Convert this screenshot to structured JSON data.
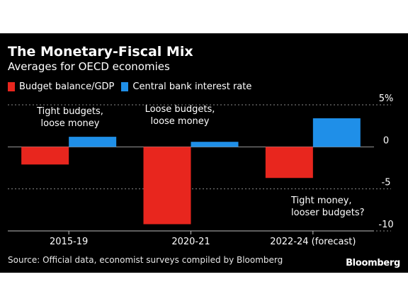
{
  "title": "The Monetary-Fiscal Mix",
  "subtitle": "Averages for OECD economies",
  "source": "Source: Official data, economist surveys compiled by Bloomberg",
  "brand": "Bloomberg",
  "colors": {
    "background": "#000000",
    "budget": "#e8261e",
    "rate": "#1f8fe8",
    "grid": "#8c8c8c"
  },
  "chart_data": {
    "type": "bar",
    "title": "The Monetary-Fiscal Mix",
    "subtitle": "Averages for OECD economies",
    "categories": [
      "2015-19",
      "2020-21",
      "2022-24 (forecast)"
    ],
    "series": [
      {
        "name": "Budget balance/GDP",
        "values": [
          -2.1,
          -9.2,
          -3.7
        ]
      },
      {
        "name": "Central bank interest rate",
        "values": [
          1.2,
          0.6,
          3.4
        ]
      }
    ],
    "ylim": [
      -10,
      5
    ],
    "yticks": [
      {
        "value": 5,
        "label": "5%"
      },
      {
        "value": 0,
        "label": "0"
      },
      {
        "value": -5,
        "label": "-5"
      },
      {
        "value": -10,
        "label": "-10"
      }
    ],
    "y_axis_side": "right",
    "grid": true,
    "legend": "top-left",
    "annotations": [
      {
        "category": "2015-19",
        "lines": [
          "Tight budgets,",
          "loose money"
        ]
      },
      {
        "category": "2020-21",
        "lines": [
          "Loose budgets,",
          "loose money"
        ]
      },
      {
        "category": "2022-24 (forecast)",
        "lines": [
          "Tight money,",
          "looser budgets?"
        ]
      }
    ]
  }
}
